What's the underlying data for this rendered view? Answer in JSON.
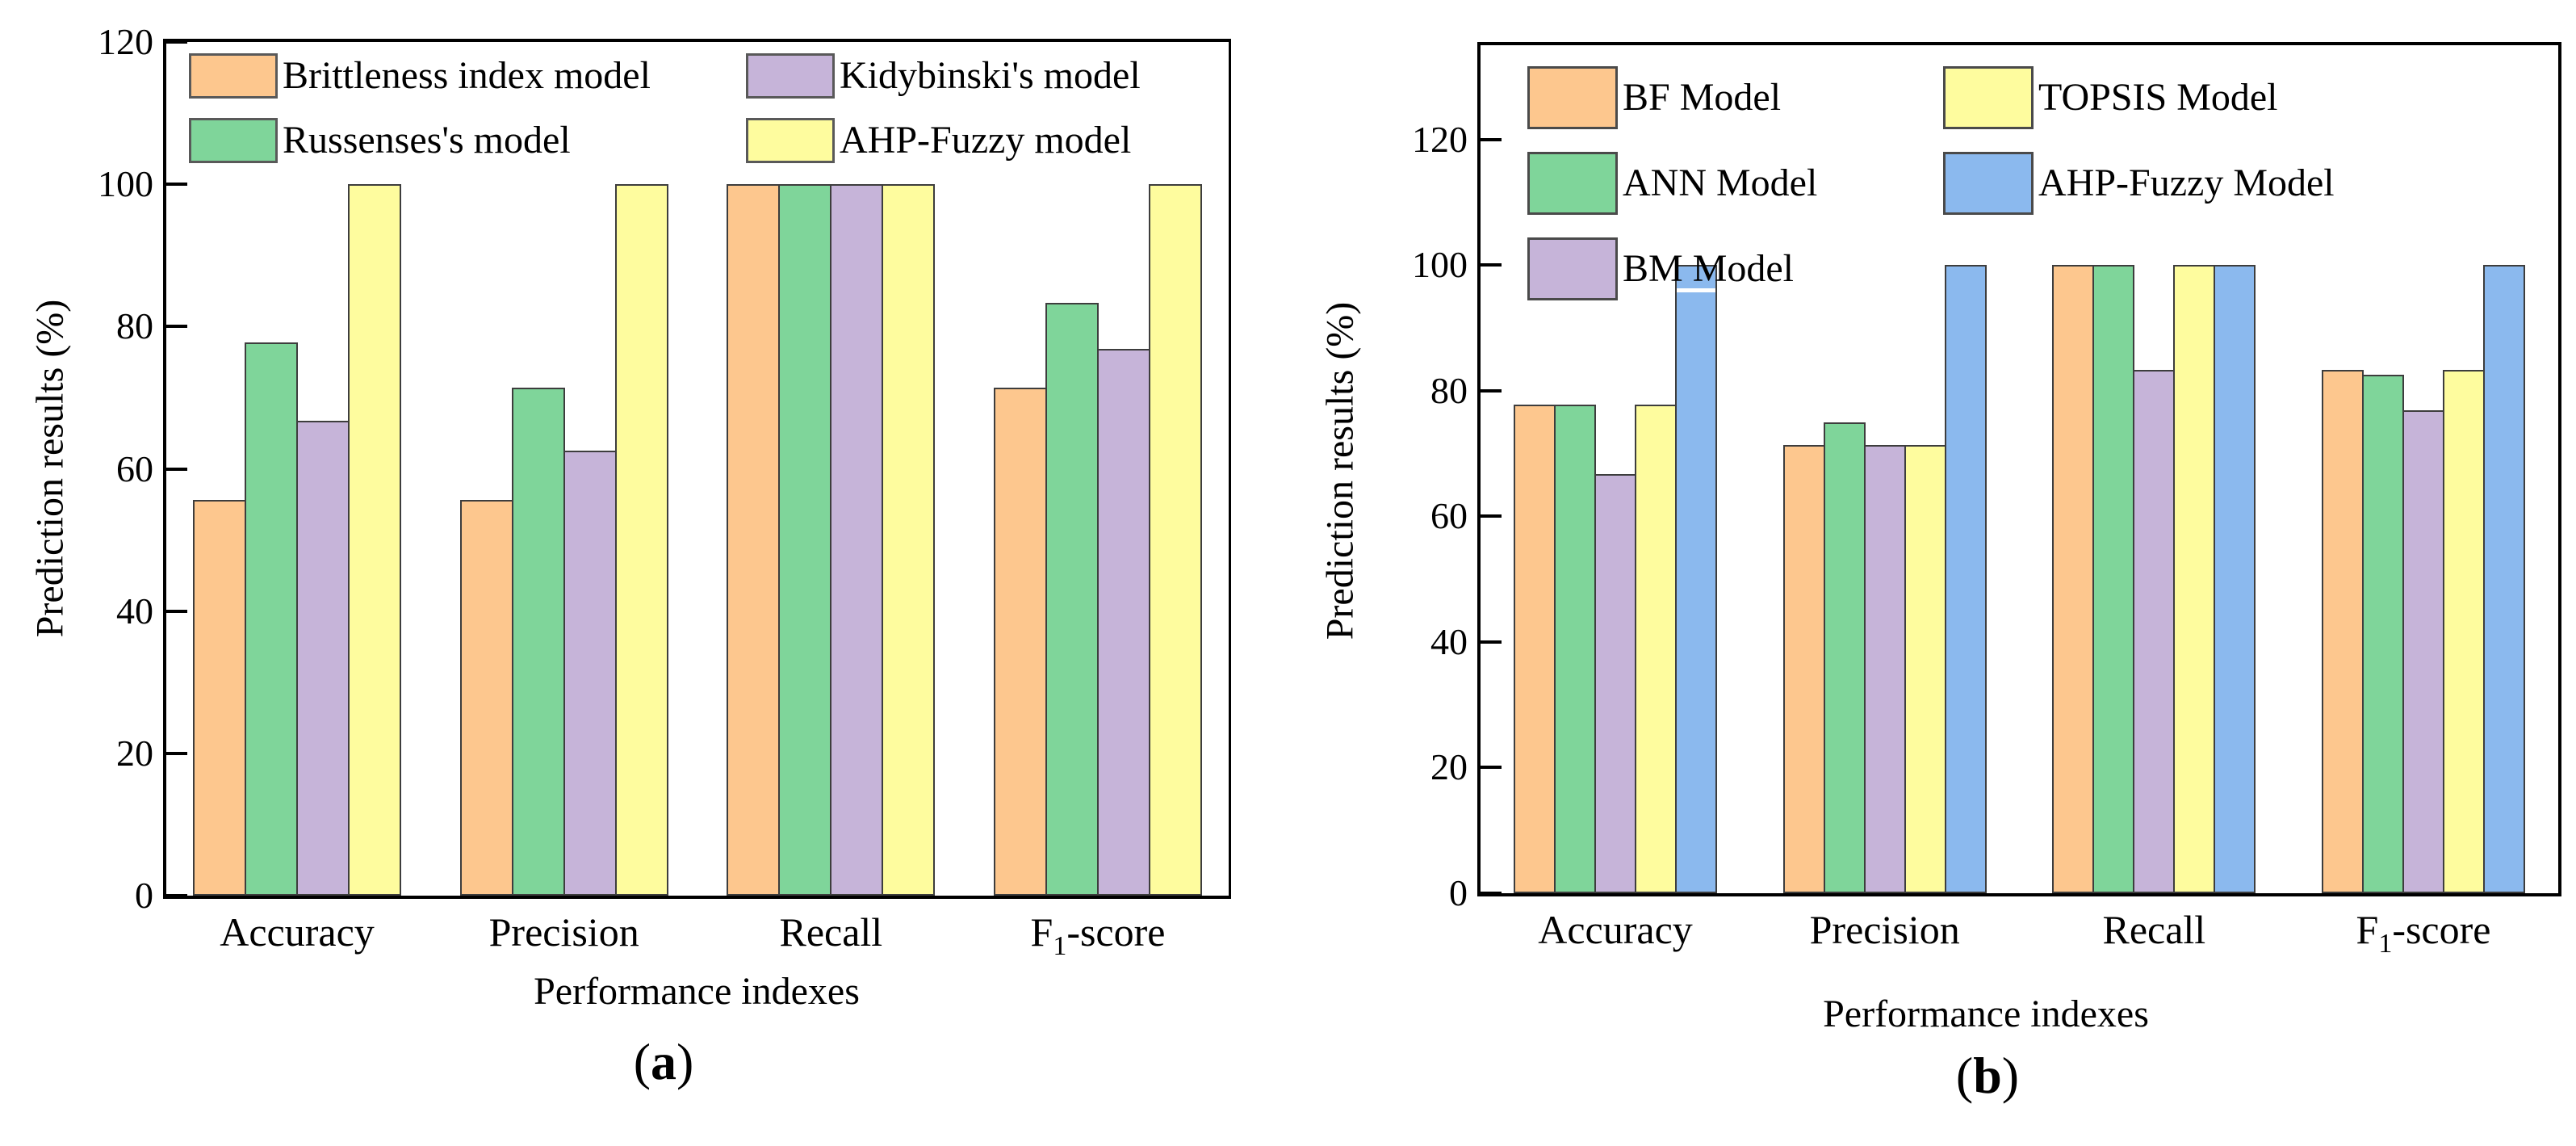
{
  "figure": {
    "description_visible_panels": [
      "(a)",
      "(b)"
    ]
  },
  "chart_data": [
    {
      "panel_label": "(a)",
      "type": "bar",
      "title": "",
      "categories": [
        "Accuracy",
        "Precision",
        "Recall",
        "F1-score"
      ],
      "series": [
        {
          "name": "Brittleness index model",
          "color": "#FDC78E",
          "values": [
            55.6,
            55.6,
            100,
            71.4
          ]
        },
        {
          "name": "Russenses's model",
          "color": "#7FD59A",
          "values": [
            77.8,
            71.4,
            100,
            83.3
          ]
        },
        {
          "name": "Kidybinski's model",
          "color": "#C6B4D9",
          "values": [
            66.7,
            62.5,
            100,
            76.9
          ]
        },
        {
          "name": "AHP-Fuzzy model",
          "color": "#FEFC9E",
          "values": [
            100,
            100,
            100,
            100
          ]
        }
      ],
      "xlabel": "Performance indexes",
      "ylabel": "Prediction results (%)",
      "yticks": [
        0,
        20,
        40,
        60,
        80,
        100,
        120
      ],
      "ylim": [
        0,
        120
      ],
      "grid": false,
      "legend_position": "top-inside",
      "legend_columns": [
        [
          0,
          1
        ],
        [
          2,
          3
        ]
      ],
      "frame_color": "#000000",
      "frame_right_color": "#C69064",
      "bar_border_color": "#3d3d3d",
      "legend_swatch_border_color": "#595959"
    },
    {
      "panel_label": "(b)",
      "type": "bar",
      "title": "",
      "categories": [
        "Accuracy",
        "Precision",
        "Recall",
        "F1-score"
      ],
      "series": [
        {
          "name": "BF Model",
          "color": "#FDC78E",
          "values": [
            77.8,
            71.4,
            100,
            83.3
          ]
        },
        {
          "name": "ANN Model",
          "color": "#7FD59A",
          "values": [
            77.8,
            75.0,
            100,
            82.6
          ]
        },
        {
          "name": "BM Model",
          "color": "#C6B4D9",
          "values": [
            66.7,
            71.4,
            83.3,
            76.9
          ]
        },
        {
          "name": "TOPSIS Model",
          "color": "#FEFC9E",
          "values": [
            77.8,
            71.4,
            100,
            83.3
          ]
        },
        {
          "name": "AHP-Fuzzy Model",
          "color": "#8BB9EE",
          "values": [
            100,
            100,
            100,
            100
          ]
        }
      ],
      "xlabel": "Performance indexes",
      "ylabel": "Prediction results (%)",
      "yticks": [
        0,
        20,
        40,
        60,
        80,
        100,
        120
      ],
      "ylim": [
        0,
        135
      ],
      "grid": false,
      "legend_position": "top-inside",
      "legend_columns": [
        [
          0,
          1,
          2
        ],
        [
          3,
          4
        ]
      ],
      "frame_color": "#000000",
      "bar_border_color": "#3d3d3d",
      "legend_swatch_border_color": "#4a4a4a",
      "render_artifacts": {
        "white_notch": {
          "series_index": 4,
          "category_index": 0,
          "y_percent": 96.5
        }
      }
    }
  ]
}
